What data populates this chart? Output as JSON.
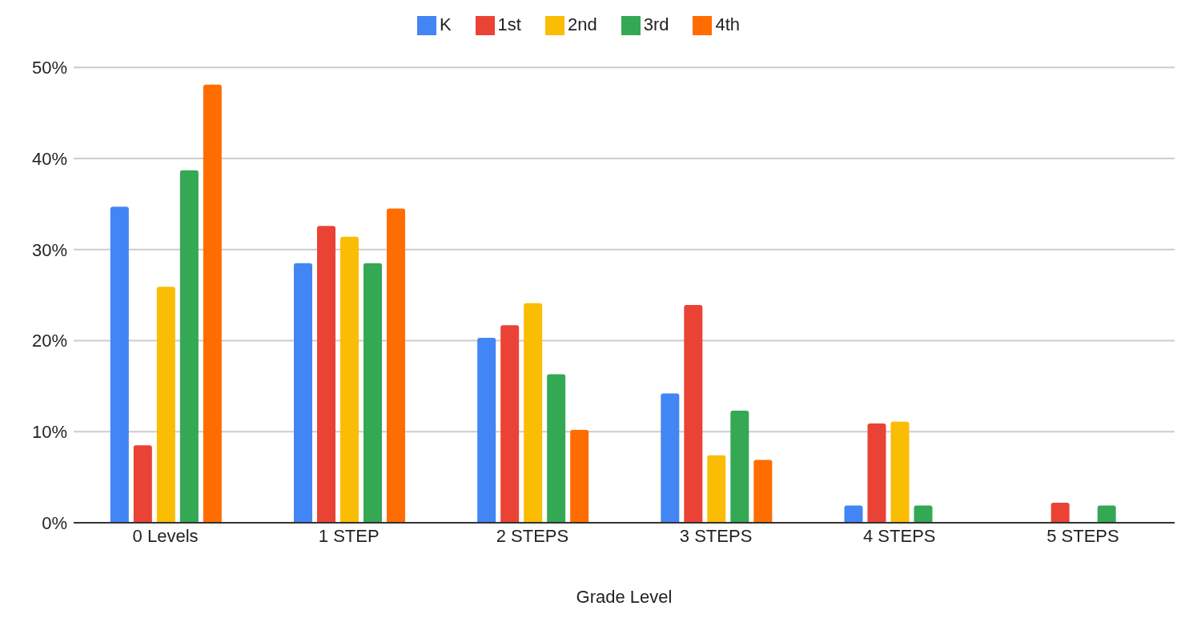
{
  "chart_data": {
    "type": "bar",
    "xlabel": "Grade Level",
    "categories": [
      "0 Levels",
      "1 STEP",
      "2 STEPS",
      "3 STEPS",
      "4 STEPS",
      "5 STEPS"
    ],
    "series": [
      {
        "name": "K",
        "color": "#4285f4",
        "values": [
          34.7,
          28.5,
          20.3,
          14.2,
          1.9,
          0
        ]
      },
      {
        "name": "1st",
        "color": "#ea4335",
        "values": [
          8.5,
          32.6,
          21.7,
          23.9,
          10.9,
          2.2
        ]
      },
      {
        "name": "2nd",
        "color": "#fbbc04",
        "values": [
          25.9,
          31.4,
          24.1,
          7.4,
          11.1,
          0
        ]
      },
      {
        "name": "3rd",
        "color": "#34a853",
        "values": [
          38.7,
          28.5,
          16.3,
          12.3,
          1.9,
          1.9
        ]
      },
      {
        "name": "4th",
        "color": "#ff6d01",
        "values": [
          48.1,
          34.5,
          10.2,
          6.9,
          0,
          0
        ]
      }
    ],
    "ylim": [
      0,
      50
    ],
    "yticks": [
      {
        "value": 0,
        "label": "0%"
      },
      {
        "value": 10,
        "label": "10%"
      },
      {
        "value": 20,
        "label": "20%"
      },
      {
        "value": 30,
        "label": "30%"
      },
      {
        "value": 40,
        "label": "40%"
      },
      {
        "value": 50,
        "label": "50%"
      }
    ],
    "grid": "y",
    "legend": "top"
  }
}
